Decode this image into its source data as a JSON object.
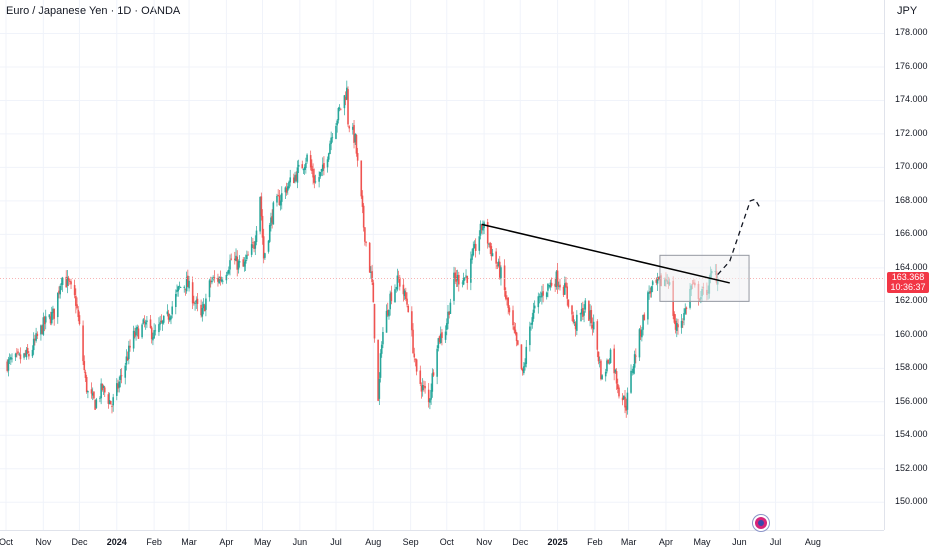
{
  "header": {
    "title": "Euro / Japanese Yen · 1D · OANDA",
    "currency": "JPY"
  },
  "price_badge": {
    "price": "163.368",
    "countdown": "10:36:37",
    "color": "#f23645"
  },
  "colors": {
    "up": "#26a69a",
    "down": "#ef5350",
    "trendline": "#000000",
    "box_fill": "#f0f1f3",
    "box_border": "#9598a1"
  },
  "icons": {
    "event": "economic-event-icon"
  },
  "chart_data": {
    "type": "candlestick",
    "symbol": "Euro / Japanese Yen",
    "interval": "1D",
    "source": "OANDA",
    "y_axis": {
      "range": [
        149,
        180
      ],
      "ticks": [
        "150.000",
        "152.000",
        "154.000",
        "156.000",
        "158.000",
        "160.000",
        "162.000",
        "164.000",
        "166.000",
        "168.000",
        "170.000",
        "172.000",
        "174.000",
        "176.000",
        "178.000"
      ]
    },
    "x_axis": {
      "range": [
        "2023-10-01",
        "2025-08-31"
      ],
      "ticks": [
        {
          "label": "Oct",
          "date": "2023-10-01"
        },
        {
          "label": "Nov",
          "date": "2023-11-01"
        },
        {
          "label": "Dec",
          "date": "2023-12-01"
        },
        {
          "label": "2024",
          "date": "2024-01-01",
          "bold": true
        },
        {
          "label": "Feb",
          "date": "2024-02-01"
        },
        {
          "label": "Mar",
          "date": "2024-03-01"
        },
        {
          "label": "Apr",
          "date": "2024-04-01"
        },
        {
          "label": "May",
          "date": "2024-05-01"
        },
        {
          "label": "Jun",
          "date": "2024-06-01"
        },
        {
          "label": "Jul",
          "date": "2024-07-01"
        },
        {
          "label": "Aug",
          "date": "2024-08-01"
        },
        {
          "label": "Sep",
          "date": "2024-09-01"
        },
        {
          "label": "Oct",
          "date": "2024-10-01"
        },
        {
          "label": "Nov",
          "date": "2024-11-01"
        },
        {
          "label": "Dec",
          "date": "2024-12-01"
        },
        {
          "label": "2025",
          "date": "2025-01-01",
          "bold": true
        },
        {
          "label": "Feb",
          "date": "2025-02-01"
        },
        {
          "label": "Mar",
          "date": "2025-03-01"
        },
        {
          "label": "Apr",
          "date": "2025-04-01"
        },
        {
          "label": "May",
          "date": "2025-05-01"
        },
        {
          "label": "Jun",
          "date": "2025-06-01"
        },
        {
          "label": "Jul",
          "date": "2025-07-01"
        },
        {
          "label": "Aug",
          "date": "2025-08-01"
        }
      ]
    },
    "price_path": [
      [
        "2023-10-02",
        158.3
      ],
      [
        "2023-10-20",
        158.8
      ],
      [
        "2023-11-01",
        160.6
      ],
      [
        "2023-11-10",
        161.3
      ],
      [
        "2023-11-16",
        163.5
      ],
      [
        "2023-11-22",
        163.0
      ],
      [
        "2023-11-28",
        162.0
      ],
      [
        "2023-12-01",
        160.4
      ],
      [
        "2023-12-06",
        157.2
      ],
      [
        "2023-12-08",
        156.5
      ],
      [
        "2023-12-14",
        155.9
      ],
      [
        "2023-12-20",
        156.8
      ],
      [
        "2023-12-28",
        155.8
      ],
      [
        "2024-01-05",
        157.6
      ],
      [
        "2024-01-15",
        159.9
      ],
      [
        "2024-01-24",
        160.6
      ],
      [
        "2024-02-01",
        160.0
      ],
      [
        "2024-02-12",
        161.0
      ],
      [
        "2024-02-22",
        162.8
      ],
      [
        "2024-02-28",
        163.1
      ],
      [
        "2024-03-04",
        162.3
      ],
      [
        "2024-03-11",
        161.0
      ],
      [
        "2024-03-19",
        163.2
      ],
      [
        "2024-03-28",
        163.4
      ],
      [
        "2024-04-05",
        164.5
      ],
      [
        "2024-04-15",
        164.0
      ],
      [
        "2024-04-24",
        165.4
      ],
      [
        "2024-04-29",
        168.4
      ],
      [
        "2024-05-02",
        164.6
      ],
      [
        "2024-05-10",
        167.5
      ],
      [
        "2024-05-20",
        168.7
      ],
      [
        "2024-05-31",
        169.8
      ],
      [
        "2024-06-07",
        170.6
      ],
      [
        "2024-06-14",
        169.1
      ],
      [
        "2024-06-21",
        169.9
      ],
      [
        "2024-06-28",
        172.2
      ],
      [
        "2024-07-05",
        173.6
      ],
      [
        "2024-07-10",
        174.6
      ],
      [
        "2024-07-11",
        172.8
      ],
      [
        "2024-07-17",
        171.6
      ],
      [
        "2024-07-24",
        166.5
      ],
      [
        "2024-07-31",
        163.0
      ],
      [
        "2024-08-05",
        155.9
      ],
      [
        "2024-08-08",
        159.8
      ],
      [
        "2024-08-15",
        162.3
      ],
      [
        "2024-08-22",
        163.3
      ],
      [
        "2024-08-30",
        161.7
      ],
      [
        "2024-09-06",
        157.5
      ],
      [
        "2024-09-13",
        156.6
      ],
      [
        "2024-09-16",
        155.9
      ],
      [
        "2024-09-23",
        159.6
      ],
      [
        "2024-09-30",
        160.4
      ],
      [
        "2024-10-07",
        163.3
      ],
      [
        "2024-10-18",
        163.5
      ],
      [
        "2024-10-28",
        166.0
      ],
      [
        "2024-10-31",
        166.6
      ],
      [
        "2024-11-06",
        165.2
      ],
      [
        "2024-11-15",
        163.6
      ],
      [
        "2024-11-22",
        161.2
      ],
      [
        "2024-11-29",
        159.1
      ],
      [
        "2024-12-03",
        157.5
      ],
      [
        "2024-12-10",
        161.0
      ],
      [
        "2024-12-20",
        162.6
      ],
      [
        "2024-12-31",
        163.4
      ],
      [
        "2025-01-08",
        162.6
      ],
      [
        "2025-01-15",
        160.5
      ],
      [
        "2025-01-24",
        161.7
      ],
      [
        "2025-01-31",
        160.5
      ],
      [
        "2025-02-07",
        157.3
      ],
      [
        "2025-02-14",
        159.0
      ],
      [
        "2025-02-21",
        156.7
      ],
      [
        "2025-02-27",
        155.8
      ],
      [
        "2025-03-04",
        158.0
      ],
      [
        "2025-03-10",
        159.9
      ],
      [
        "2025-03-18",
        162.6
      ],
      [
        "2025-03-27",
        163.1
      ],
      [
        "2025-04-03",
        163.4
      ],
      [
        "2025-04-09",
        160.3
      ],
      [
        "2025-04-16",
        161.2
      ],
      [
        "2025-04-22",
        162.9
      ],
      [
        "2025-04-30",
        162.3
      ],
      [
        "2025-05-06",
        162.8
      ],
      [
        "2025-05-10",
        163.9
      ],
      [
        "2025-05-14",
        163.368
      ]
    ],
    "last_price": 163.368,
    "annotations": {
      "trendline": [
        [
          "2024-10-30",
          166.6
        ],
        [
          "2025-05-24",
          163.1
        ]
      ],
      "range_box": {
        "from": "2025-03-27",
        "to": "2025-06-09",
        "low": 162.0,
        "high": 164.75
      },
      "projection": [
        [
          "2025-05-14",
          163.6
        ],
        [
          "2025-05-24",
          164.4
        ],
        [
          "2025-06-10",
          168.0
        ],
        [
          "2025-06-14",
          168.1
        ],
        [
          "2025-06-18",
          167.6
        ]
      ]
    }
  }
}
